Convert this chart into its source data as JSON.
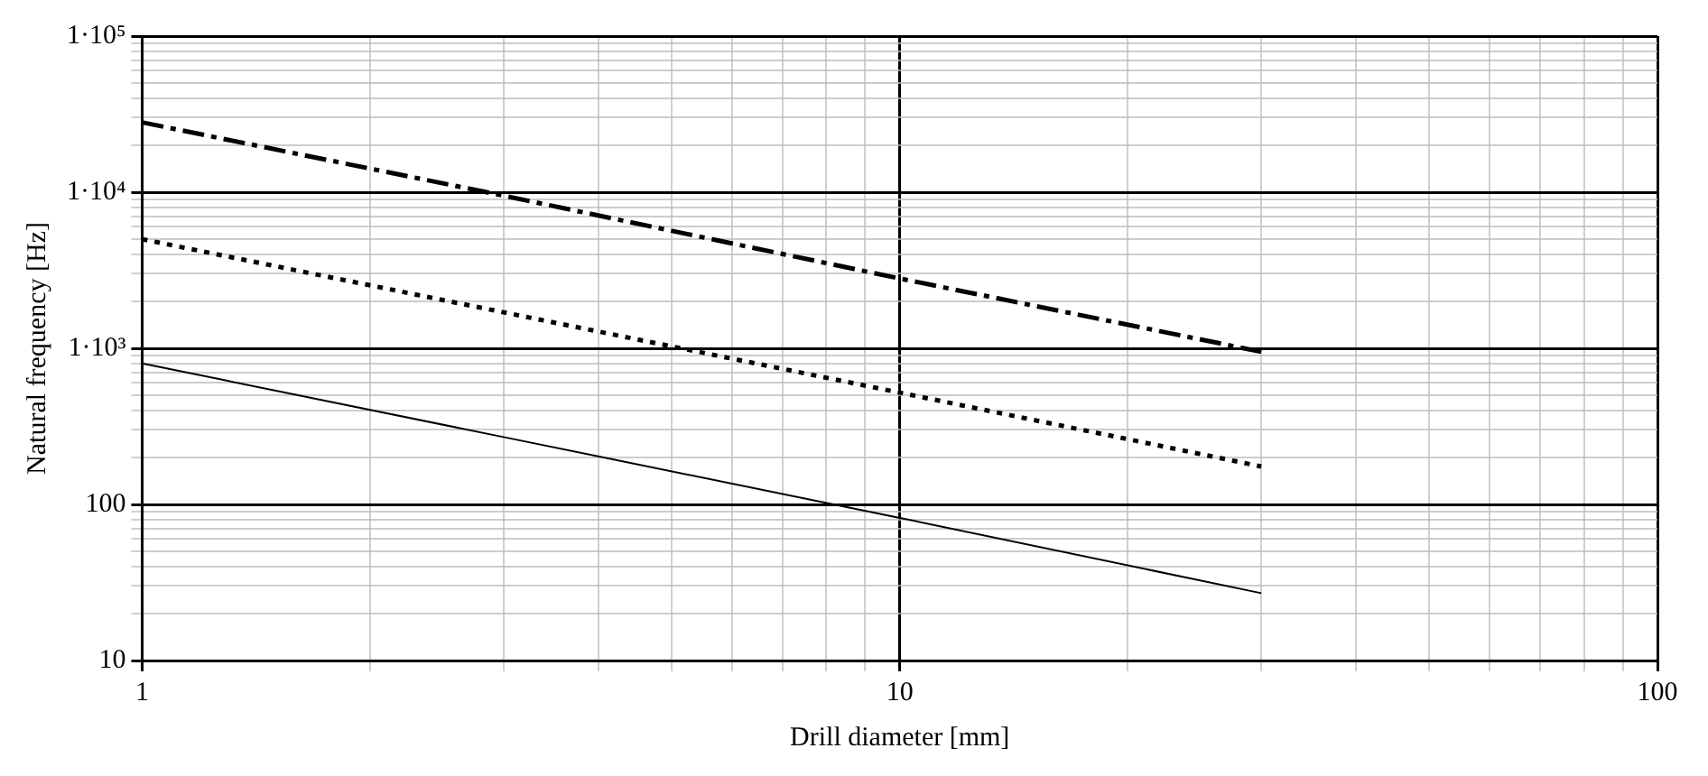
{
  "chart_data": {
    "type": "line",
    "xlabel": "Drill diameter [mm]",
    "ylabel": "Natural frequency [Hz]",
    "log": "xy",
    "grid": true,
    "legend": false,
    "marker": "none",
    "x": [
      1,
      3,
      10,
      30
    ],
    "series": [
      {
        "color": "#000000",
        "line_style": "dashed",
        "values": [
          28000,
          9500,
          2800,
          950
        ]
      },
      {
        "color": "#000000",
        "line_style": "dotted",
        "values": [
          5000,
          1700,
          520,
          175
        ]
      },
      {
        "color": "#000000",
        "line_style": "solid",
        "values": [
          800,
          270,
          82,
          27
        ]
      }
    ],
    "xlim": [
      1,
      100
    ],
    "xticks": [
      1,
      {
        "value": 2,
        "label": null
      },
      {
        "value": 3,
        "label": null
      },
      {
        "value": 4,
        "label": null
      },
      {
        "value": 5,
        "label": null
      },
      {
        "value": 6,
        "label": null
      },
      {
        "value": 7,
        "label": null
      },
      {
        "value": 8,
        "label": null
      },
      {
        "value": 9,
        "label": null
      },
      10,
      {
        "value": 20,
        "label": null
      },
      {
        "value": 30,
        "label": null
      },
      {
        "value": 40,
        "label": null
      },
      {
        "value": 50,
        "label": null
      },
      {
        "value": 60,
        "label": null
      },
      {
        "value": 70,
        "label": null
      },
      {
        "value": 80,
        "label": null
      },
      {
        "value": 90,
        "label": null
      },
      100
    ],
    "ylim": [
      10,
      100000
    ],
    "yticks": [
      10,
      {
        "value": 20,
        "label": null
      },
      {
        "value": 30,
        "label": null
      },
      {
        "value": 40,
        "label": null
      },
      {
        "value": 50,
        "label": null
      },
      {
        "value": 60,
        "label": null
      },
      {
        "value": 70,
        "label": null
      },
      {
        "value": 80,
        "label": null
      },
      {
        "value": 90,
        "label": null
      },
      100,
      {
        "value": 200,
        "label": null
      },
      {
        "value": 300,
        "label": null
      },
      {
        "value": 400,
        "label": null
      },
      {
        "value": 500,
        "label": null
      },
      {
        "value": 600,
        "label": null
      },
      {
        "value": 700,
        "label": null
      },
      {
        "value": 800,
        "label": null
      },
      {
        "value": 900,
        "label": null
      },
      {
        "value": 1000,
        "label": "1·10³"
      },
      {
        "value": 2000,
        "label": null
      },
      {
        "value": 3000,
        "label": null
      },
      {
        "value": 4000,
        "label": null
      },
      {
        "value": 5000,
        "label": null
      },
      {
        "value": 6000,
        "label": null
      },
      {
        "value": 7000,
        "label": null
      },
      {
        "value": 8000,
        "label": null
      },
      {
        "value": 9000,
        "label": null
      },
      {
        "value": 10000,
        "label": "1·10⁴"
      },
      {
        "value": 20000,
        "label": null
      },
      {
        "value": 30000,
        "label": null
      },
      {
        "value": 40000,
        "label": null
      },
      {
        "value": 50000,
        "label": null
      },
      {
        "value": 60000,
        "label": null
      },
      {
        "value": 70000,
        "label": null
      },
      {
        "value": 80000,
        "label": null
      },
      {
        "value": 90000,
        "label": null
      },
      {
        "value": 100000,
        "label": "1·10⁵"
      }
    ]
  }
}
